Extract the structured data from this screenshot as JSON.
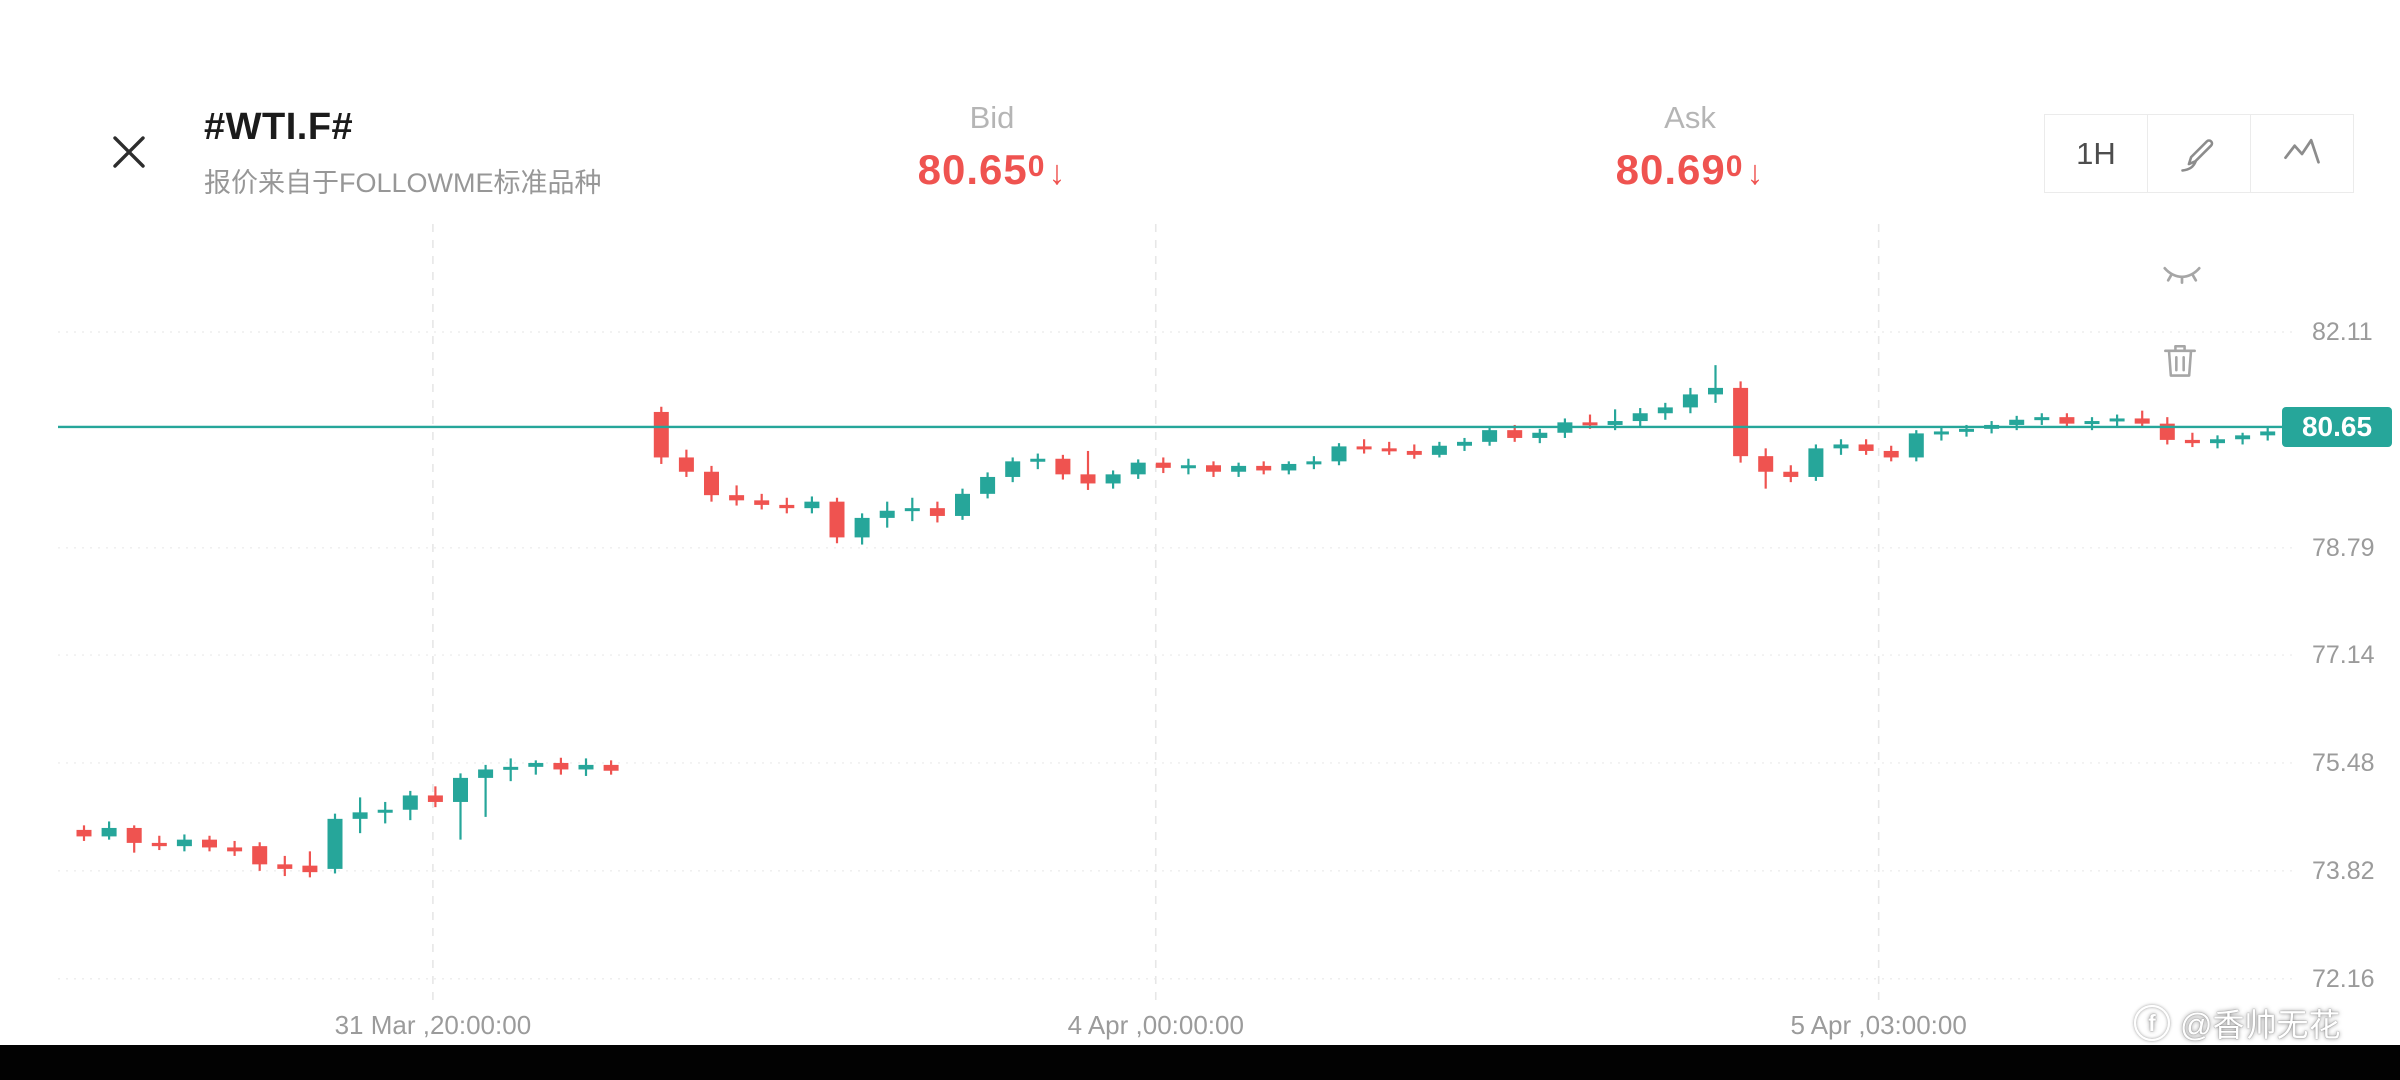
{
  "header": {
    "symbol": "#WTI.F#",
    "subtitle": "报价来自于FOLLOWME标准品种",
    "bid": {
      "label": "Bid",
      "price": "80.65",
      "pip": "0",
      "arrow": "↓",
      "direction": "down"
    },
    "ask": {
      "label": "Ask",
      "price": "80.69",
      "pip": "0",
      "arrow": "↓",
      "direction": "down"
    },
    "quote_down_color": "#ef5350",
    "controls": {
      "timeframe": "1H"
    }
  },
  "chart": {
    "price_badge": "80.65",
    "accent_up": "#26a69a",
    "accent_down": "#ef5350",
    "y_axis_labels": [
      "82.11",
      "78.79",
      "77.14",
      "75.48",
      "73.82",
      "72.16"
    ],
    "x_axis_labels": [
      {
        "text": "31 Mar ,20:00:00",
        "slot": 13.9
      },
      {
        "text": "4 Apr ,00:00:00",
        "slot": 42.7
      },
      {
        "text": "5 Apr ,03:00:00",
        "slot": 71.5
      }
    ],
    "watermark": {
      "logo": "f",
      "handle": "@香帅无花"
    }
  },
  "chart_data": {
    "type": "candlestick",
    "symbol": "#WTI.F#",
    "timeframe": "1H",
    "current_price": 80.65,
    "up_color": "#26a69a",
    "down_color": "#ef5350",
    "y_gridline_values": [
      82.11,
      78.79,
      77.14,
      75.48,
      73.82,
      72.16
    ],
    "ohlc": [
      [
        74.45,
        74.52,
        74.28,
        74.35
      ],
      [
        74.35,
        74.58,
        74.3,
        74.48
      ],
      [
        74.48,
        74.52,
        74.1,
        74.25
      ],
      [
        74.25,
        74.36,
        74.14,
        74.2
      ],
      [
        74.2,
        74.38,
        74.12,
        74.3
      ],
      [
        74.3,
        74.36,
        74.12,
        74.18
      ],
      [
        74.18,
        74.28,
        74.05,
        74.12
      ],
      [
        74.2,
        74.26,
        73.82,
        73.92
      ],
      [
        73.92,
        74.05,
        73.74,
        73.85
      ],
      [
        73.9,
        74.12,
        73.72,
        73.8
      ],
      [
        73.85,
        74.7,
        73.78,
        74.62
      ],
      [
        74.62,
        74.95,
        74.4,
        74.72
      ],
      [
        74.72,
        74.88,
        74.55,
        74.76
      ],
      [
        74.76,
        75.05,
        74.6,
        74.98
      ],
      [
        74.98,
        75.12,
        74.8,
        74.88
      ],
      [
        74.88,
        75.32,
        74.3,
        75.25
      ],
      [
        75.25,
        75.45,
        74.65,
        75.38
      ],
      [
        75.38,
        75.55,
        75.2,
        75.42
      ],
      [
        75.42,
        75.52,
        75.3,
        75.48
      ],
      [
        75.48,
        75.56,
        75.3,
        75.38
      ],
      [
        75.38,
        75.55,
        75.28,
        75.45
      ],
      [
        75.45,
        75.52,
        75.3,
        75.36
      ],
      null,
      [
        80.88,
        80.96,
        80.08,
        80.18
      ],
      [
        80.18,
        80.3,
        79.88,
        79.96
      ],
      [
        79.96,
        80.05,
        79.5,
        79.6
      ],
      [
        79.6,
        79.75,
        79.44,
        79.52
      ],
      [
        79.52,
        79.62,
        79.38,
        79.45
      ],
      [
        79.45,
        79.56,
        79.32,
        79.4
      ],
      [
        79.4,
        79.58,
        79.32,
        79.5
      ],
      [
        79.5,
        79.56,
        78.86,
        78.95
      ],
      [
        78.95,
        79.32,
        78.84,
        79.25
      ],
      [
        79.25,
        79.5,
        79.1,
        79.36
      ],
      [
        79.36,
        79.56,
        79.2,
        79.4
      ],
      [
        79.4,
        79.5,
        79.18,
        79.28
      ],
      [
        79.28,
        79.7,
        79.22,
        79.62
      ],
      [
        79.62,
        79.95,
        79.55,
        79.88
      ],
      [
        79.88,
        80.18,
        79.8,
        80.12
      ],
      [
        80.12,
        80.24,
        80.0,
        80.16
      ],
      [
        80.16,
        80.22,
        79.84,
        79.92
      ],
      [
        79.92,
        80.28,
        79.68,
        79.78
      ],
      [
        79.78,
        79.98,
        79.7,
        79.92
      ],
      [
        79.92,
        80.15,
        79.85,
        80.1
      ],
      [
        80.1,
        80.18,
        79.94,
        80.02
      ],
      [
        80.02,
        80.16,
        79.92,
        80.06
      ],
      [
        80.06,
        80.12,
        79.88,
        79.96
      ],
      [
        79.96,
        80.1,
        79.88,
        80.05
      ],
      [
        80.05,
        80.12,
        79.92,
        79.98
      ],
      [
        79.98,
        80.12,
        79.92,
        80.08
      ],
      [
        80.08,
        80.2,
        80.0,
        80.12
      ],
      [
        80.12,
        80.4,
        80.06,
        80.35
      ],
      [
        80.35,
        80.46,
        80.24,
        80.32
      ],
      [
        80.32,
        80.42,
        80.22,
        80.28
      ],
      [
        80.28,
        80.38,
        80.16,
        80.22
      ],
      [
        80.22,
        80.42,
        80.18,
        80.36
      ],
      [
        80.36,
        80.48,
        80.28,
        80.42
      ],
      [
        80.42,
        80.66,
        80.36,
        80.6
      ],
      [
        80.6,
        80.68,
        80.42,
        80.48
      ],
      [
        80.48,
        80.62,
        80.4,
        80.56
      ],
      [
        80.56,
        80.78,
        80.48,
        80.72
      ],
      [
        80.72,
        80.84,
        80.62,
        80.68
      ],
      [
        80.68,
        80.92,
        80.6,
        80.74
      ],
      [
        80.74,
        80.94,
        80.66,
        80.86
      ],
      [
        80.86,
        81.02,
        80.76,
        80.95
      ],
      [
        80.95,
        81.25,
        80.86,
        81.15
      ],
      [
        81.15,
        81.6,
        81.02,
        81.25
      ],
      [
        81.25,
        81.35,
        80.1,
        80.2
      ],
      [
        80.2,
        80.32,
        79.7,
        79.96
      ],
      [
        79.96,
        80.06,
        79.8,
        79.88
      ],
      [
        79.88,
        80.38,
        79.82,
        80.32
      ],
      [
        80.32,
        80.46,
        80.22,
        80.38
      ],
      [
        80.38,
        80.46,
        80.22,
        80.28
      ],
      [
        80.28,
        80.36,
        80.12,
        80.18
      ],
      [
        80.18,
        80.6,
        80.12,
        80.55
      ],
      [
        80.55,
        80.66,
        80.44,
        80.58
      ],
      [
        80.58,
        80.68,
        80.5,
        80.62
      ],
      [
        80.62,
        80.74,
        80.55,
        80.68
      ],
      [
        80.68,
        80.82,
        80.6,
        80.76
      ],
      [
        80.76,
        80.86,
        80.68,
        80.8
      ],
      [
        80.8,
        80.86,
        80.66,
        80.7
      ],
      [
        80.7,
        80.8,
        80.6,
        80.74
      ],
      [
        80.74,
        80.84,
        80.64,
        80.78
      ],
      [
        80.78,
        80.9,
        80.64,
        80.7
      ],
      [
        80.7,
        80.8,
        80.38,
        80.45
      ],
      [
        80.45,
        80.56,
        80.34,
        80.4
      ],
      [
        80.4,
        80.52,
        80.32,
        80.46
      ],
      [
        80.46,
        80.56,
        80.38,
        80.52
      ],
      [
        80.52,
        80.64,
        80.44,
        80.58
      ]
    ]
  }
}
